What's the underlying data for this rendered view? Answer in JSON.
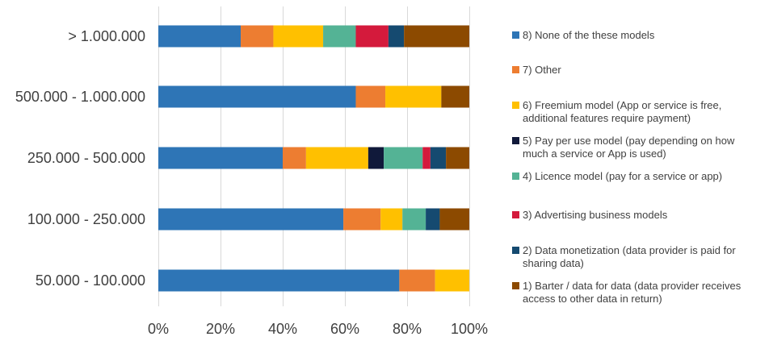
{
  "chart_data": {
    "type": "bar",
    "orientation": "horizontal",
    "stacked": "percent",
    "categories": [
      "> 1.000.000",
      "500.000 - 1.000.000",
      "250.000 - 500.000",
      "100.000 - 250.000",
      "50.000 - 100.000"
    ],
    "series": [
      {
        "name": "8) None of the these models",
        "color": "#2e75b6",
        "values": [
          26.5,
          63.5,
          40,
          59.5,
          77.5
        ]
      },
      {
        "name": "7) Other",
        "color": "#ed7d31",
        "values": [
          10.5,
          9.5,
          7.5,
          12,
          11.5
        ]
      },
      {
        "name": "6) Freemium model (App or service is free, additional features require payment)",
        "color": "#ffc000",
        "values": [
          16,
          18,
          20,
          7,
          11
        ]
      },
      {
        "name": "5) Pay per use model (pay depending on how much a service or App is used)",
        "color": "#10193a",
        "values": [
          0,
          0,
          5,
          0,
          0
        ]
      },
      {
        "name": "4) Licence model (pay for a service or app)",
        "color": "#54b395",
        "values": [
          10.5,
          0,
          12.5,
          7.5,
          0
        ]
      },
      {
        "name": "3) Advertising business models",
        "color": "#d41a3c",
        "values": [
          10.5,
          0,
          2.5,
          0,
          0
        ]
      },
      {
        "name": "2) Data monetization (data provider is paid for sharing data)",
        "color": "#154a70",
        "values": [
          5,
          0,
          5,
          4.5,
          0
        ]
      },
      {
        "name": "1) Barter / data for data (data provider receives access to other data in return)",
        "color": "#8c4a00",
        "values": [
          21,
          9,
          7.5,
          9.5,
          0
        ]
      }
    ],
    "x_ticks": [
      "0%",
      "20%",
      "40%",
      "60%",
      "80%",
      "100%"
    ],
    "xlim": [
      0,
      100
    ],
    "grid": "vertical",
    "legend_position": "right",
    "title": "",
    "xlabel": "",
    "ylabel": ""
  }
}
